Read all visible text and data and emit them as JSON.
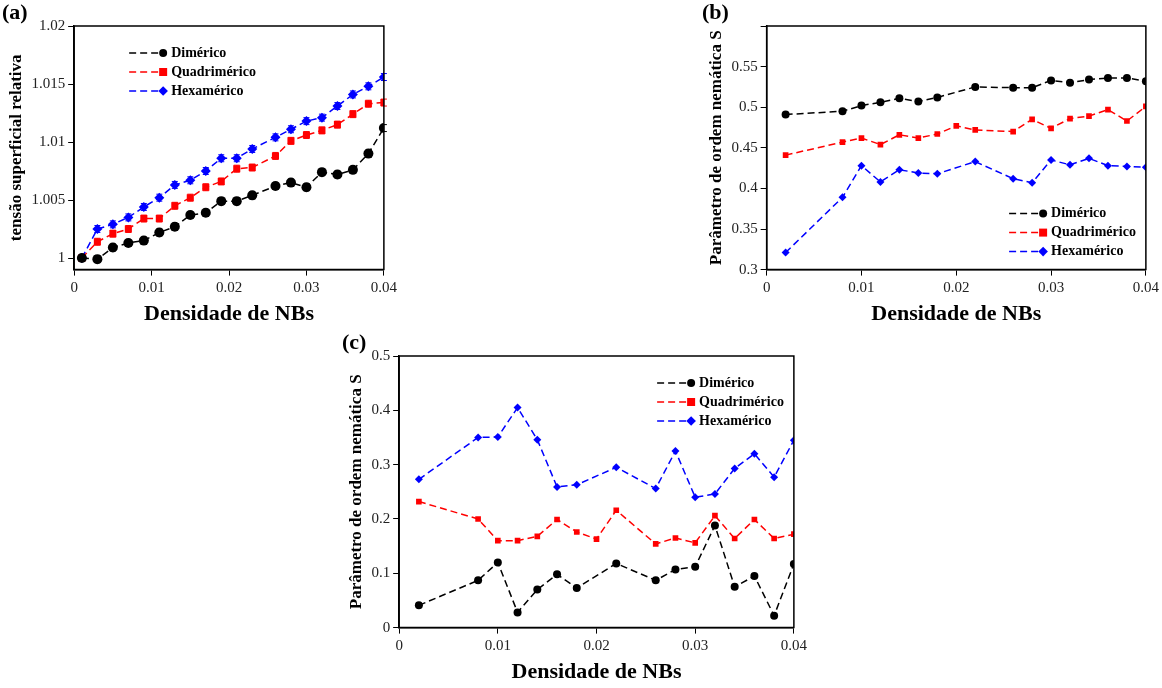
{
  "chart_data": [
    {
      "type": "line",
      "title": "(a)",
      "xlabel": "Densidade de NBs",
      "ylabel": "tensão superficial relativa",
      "xlim": [
        0,
        0.04
      ],
      "xticks": [
        0,
        0.01,
        0.02,
        0.03,
        0.04
      ],
      "ylim": [
        0.999,
        1.02
      ],
      "yticks": [
        1,
        1.005,
        1.01,
        1.015,
        1.02
      ],
      "grid": false,
      "legend": "top left",
      "series": [
        {
          "name": "Dimérico",
          "color": "#000000",
          "marker": "circle",
          "line_style": "dashed",
          "x": [
            0.001,
            0.003,
            0.005,
            0.007,
            0.009,
            0.011,
            0.013,
            0.015,
            0.017,
            0.019,
            0.021,
            0.023,
            0.026,
            0.028,
            0.03,
            0.032,
            0.034,
            0.036,
            0.038,
            0.04
          ],
          "values": [
            1.0,
            0.9999,
            1.0009,
            1.0013,
            1.0015,
            1.0022,
            1.0027,
            1.0037,
            1.0039,
            1.0049,
            1.0049,
            1.0054,
            1.0062,
            1.0065,
            1.0061,
            1.0074,
            1.0072,
            1.0076,
            1.009,
            1.0112
          ],
          "errors": [
            0.0003,
            0.0003,
            0.0003,
            0.0003,
            0.0003,
            0.0003,
            0.0003,
            0.0003,
            0.0003,
            0.0003,
            0.0003,
            0.0003,
            0.0003,
            0.0003,
            0.0003,
            0.0003,
            0.0003,
            0.0003,
            0.0003,
            0.0003
          ]
        },
        {
          "name": "Quadrimérico",
          "color": "#ff0000",
          "marker": "square",
          "line_style": "dashed",
          "x": [
            0.001,
            0.003,
            0.005,
            0.007,
            0.009,
            0.011,
            0.013,
            0.015,
            0.017,
            0.019,
            0.021,
            0.023,
            0.026,
            0.028,
            0.03,
            0.032,
            0.034,
            0.036,
            0.038,
            0.04
          ],
          "values": [
            1.0,
            1.0014,
            1.0021,
            1.0025,
            1.0034,
            1.0034,
            1.0045,
            1.0052,
            1.0061,
            1.0066,
            1.0077,
            1.0078,
            1.0088,
            1.0101,
            1.0106,
            1.011,
            1.0115,
            1.0124,
            1.0133,
            1.0134
          ],
          "errors": [
            0.0003,
            0.0003,
            0.0003,
            0.0003,
            0.0003,
            0.0003,
            0.0003,
            0.0003,
            0.0003,
            0.0003,
            0.0003,
            0.0003,
            0.0003,
            0.0003,
            0.0003,
            0.0003,
            0.0003,
            0.0003,
            0.0003,
            0.0003
          ]
        },
        {
          "name": "Hexamérico",
          "color": "#0000ff",
          "marker": "diamond",
          "line_style": "dashed",
          "x": [
            0.001,
            0.003,
            0.005,
            0.007,
            0.009,
            0.011,
            0.013,
            0.015,
            0.017,
            0.019,
            0.021,
            0.023,
            0.026,
            0.028,
            0.03,
            0.032,
            0.034,
            0.036,
            0.038,
            0.04
          ],
          "values": [
            1.0,
            1.0025,
            1.0029,
            1.0035,
            1.0044,
            1.0052,
            1.0063,
            1.0067,
            1.0075,
            1.0086,
            1.0086,
            1.0094,
            1.0104,
            1.0111,
            1.0118,
            1.0121,
            1.0131,
            1.0141,
            1.0148,
            1.0156
          ],
          "errors": [
            0.0003,
            0.0003,
            0.0003,
            0.0003,
            0.0003,
            0.0003,
            0.0003,
            0.0003,
            0.0003,
            0.0003,
            0.0003,
            0.0003,
            0.0003,
            0.0003,
            0.0003,
            0.0003,
            0.0003,
            0.0003,
            0.0003,
            0.0003
          ]
        }
      ]
    },
    {
      "type": "line",
      "title": "(b)",
      "xlabel": "Densidade de NBs",
      "ylabel": "Parâmetro de ordem nemática S",
      "xlim": [
        0,
        0.04
      ],
      "xticks": [
        0,
        0.01,
        0.02,
        0.03,
        0.04
      ],
      "ylim": [
        0.3,
        0.6
      ],
      "yticks": [
        0.3,
        0.35,
        0.4,
        0.45,
        0.5,
        0.55,
        {
          "value": 0.6,
          "label": null
        }
      ],
      "grid": false,
      "legend": "bottom right",
      "series": [
        {
          "name": "Dimérico",
          "color": "#000000",
          "marker": "circle",
          "line_style": "dashed",
          "x": [
            0.002,
            0.008,
            0.01,
            0.012,
            0.014,
            0.016,
            0.018,
            0.022,
            0.026,
            0.028,
            0.03,
            0.032,
            0.034,
            0.036,
            0.038,
            0.04
          ],
          "values": [
            0.491,
            0.495,
            0.502,
            0.506,
            0.511,
            0.507,
            0.512,
            0.525,
            0.524,
            0.524,
            0.533,
            0.53,
            0.534,
            0.536,
            0.536,
            0.532
          ]
        },
        {
          "name": "Quadrimérico",
          "color": "#ff0000",
          "marker": "square",
          "line_style": "dashed",
          "x": [
            0.002,
            0.008,
            0.01,
            0.012,
            0.014,
            0.016,
            0.018,
            0.02,
            0.022,
            0.026,
            0.028,
            0.03,
            0.032,
            0.034,
            0.036,
            0.038,
            0.04
          ],
          "values": [
            0.441,
            0.457,
            0.462,
            0.454,
            0.466,
            0.462,
            0.467,
            0.477,
            0.472,
            0.47,
            0.485,
            0.474,
            0.486,
            0.489,
            0.497,
            0.483,
            0.501
          ]
        },
        {
          "name": "Hexamérico",
          "color": "#0000ff",
          "marker": "diamond",
          "line_style": "dashed",
          "x": [
            0.002,
            0.008,
            0.01,
            0.012,
            0.014,
            0.016,
            0.018,
            0.022,
            0.026,
            0.028,
            0.03,
            0.032,
            0.034,
            0.036,
            0.038,
            0.04
          ],
          "values": [
            0.321,
            0.389,
            0.428,
            0.408,
            0.423,
            0.419,
            0.418,
            0.433,
            0.412,
            0.407,
            0.435,
            0.429,
            0.437,
            0.428,
            0.427,
            0.426
          ]
        }
      ]
    },
    {
      "type": "line",
      "title": "(c)",
      "xlabel": "Densidade de NBs",
      "ylabel": "Parâmetro de ordem nemática S",
      "xlim": [
        0,
        0.04
      ],
      "xticks": [
        0,
        0.01,
        0.02,
        0.03,
        0.04
      ],
      "ylim": [
        0,
        0.5
      ],
      "yticks": [
        0,
        0.1,
        0.2,
        0.3,
        0.4,
        0.5
      ],
      "grid": false,
      "legend": "top right",
      "series": [
        {
          "name": "Dimérico",
          "color": "#000000",
          "marker": "circle",
          "line_style": "dashed",
          "x": [
            0.002,
            0.008,
            0.01,
            0.012,
            0.014,
            0.016,
            0.018,
            0.022,
            0.026,
            0.028,
            0.03,
            0.032,
            0.034,
            0.036,
            0.038,
            0.04
          ],
          "values": [
            0.041,
            0.087,
            0.12,
            0.028,
            0.07,
            0.098,
            0.073,
            0.118,
            0.087,
            0.107,
            0.112,
            0.188,
            0.075,
            0.095,
            0.022,
            0.117
          ]
        },
        {
          "name": "Quadrimérico",
          "color": "#ff0000",
          "marker": "square",
          "line_style": "dashed",
          "x": [
            0.002,
            0.008,
            0.01,
            0.012,
            0.014,
            0.016,
            0.018,
            0.02,
            0.022,
            0.026,
            0.028,
            0.03,
            0.032,
            0.034,
            0.036,
            0.038,
            0.04
          ],
          "values": [
            0.232,
            0.2,
            0.16,
            0.16,
            0.168,
            0.199,
            0.176,
            0.163,
            0.216,
            0.154,
            0.165,
            0.156,
            0.206,
            0.164,
            0.199,
            0.164,
            0.172
          ]
        },
        {
          "name": "Hexamérico",
          "color": "#0000ff",
          "marker": "diamond",
          "line_style": "dashed",
          "x": [
            0.002,
            0.008,
            0.01,
            0.012,
            0.014,
            0.016,
            0.018,
            0.022,
            0.026,
            0.028,
            0.03,
            0.032,
            0.034,
            0.036,
            0.038,
            0.04
          ],
          "values": [
            0.273,
            0.35,
            0.351,
            0.405,
            0.346,
            0.259,
            0.263,
            0.295,
            0.256,
            0.325,
            0.24,
            0.246,
            0.293,
            0.32,
            0.277,
            0.345
          ]
        }
      ]
    }
  ]
}
